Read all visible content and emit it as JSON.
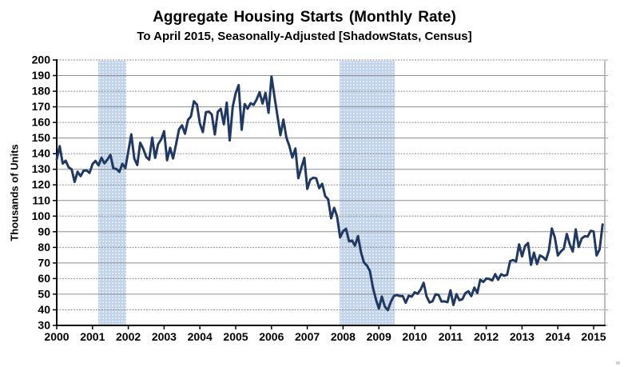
{
  "chart_data": {
    "type": "line",
    "title": "Aggregate Housing Starts (Monthly Rate)",
    "subtitle": "To April 2015, Seasonally-Adjusted [ShadowStats, Census]",
    "ylabel": "Thousands of Units",
    "xlabel": "",
    "ylim": [
      30,
      200
    ],
    "xlim": [
      2000,
      2015.3333
    ],
    "y_ticks": [
      200,
      190,
      180,
      170,
      160,
      150,
      140,
      130,
      120,
      110,
      100,
      90,
      80,
      70,
      60,
      50,
      40,
      30
    ],
    "x_ticks": [
      2000,
      2001,
      2002,
      2003,
      2004,
      2005,
      2006,
      2007,
      2008,
      2009,
      2010,
      2011,
      2012,
      2013,
      2014,
      2015
    ],
    "grid": "horizontal-only",
    "legend": "none",
    "x_start_year": 2000,
    "x_step_months": 1,
    "last_point_label": "April 2015",
    "series": [
      {
        "name": "Aggregate Housing Starts",
        "color": "#1f3864",
        "values": [
          136.3,
          144.8,
          133.7,
          135.5,
          131.3,
          129.9,
          121.9,
          128.4,
          125.6,
          129.1,
          129.3,
          127.7,
          133.3,
          135.4,
          132.5,
          137.4,
          133.8,
          136.3,
          139.2,
          130.6,
          130.2,
          128.3,
          133.5,
          130.7,
          141.5,
          152.4,
          136.8,
          132.7,
          147.0,
          143.1,
          137.9,
          136.1,
          150.3,
          137.3,
          146.1,
          149.0,
          154.4,
          135.8,
          143.8,
          136.9,
          145.9,
          155.6,
          158.1,
          152.8,
          161.6,
          163.9,
          173.6,
          171.4,
          159.3,
          153.8,
          166.5,
          166.9,
          165.1,
          152.3,
          166.8,
          168.7,
          158.8,
          172.7,
          148.5,
          170.2,
          178.7,
          183.9,
          155.3,
          171.8,
          168.8,
          172.3,
          171.2,
          174.6,
          179.3,
          172.1,
          178.9,
          166.2,
          189.4,
          176.6,
          164.1,
          151.8,
          161.8,
          150.2,
          144.8,
          137.5,
          143.3,
          124.3,
          130.8,
          137.4,
          117.4,
          123.3,
          124.6,
          124.2,
          117.9,
          120.7,
          112.8,
          110.8,
          98.6,
          105.3,
          99.8,
          86.4,
          90.3,
          91.9,
          83.8,
          84.4,
          81.1,
          87.2,
          76.9,
          70.3,
          68.3,
          64.8,
          54.3,
          46.7,
          40.8,
          48.5,
          42.1,
          39.8,
          45.0,
          48.8,
          49.5,
          48.8,
          48.8,
          44.5,
          49.0,
          48.4,
          51.2,
          50.3,
          53.0,
          57.3,
          48.6,
          44.7,
          45.5,
          49.9,
          49.5,
          45.3,
          45.4,
          44.9,
          52.5,
          43.1,
          50.0,
          46.2,
          46.8,
          50.7,
          51.9,
          48.8,
          54.2,
          50.8,
          59.3,
          57.8,
          60.0,
          59.8,
          58.8,
          62.8,
          59.3,
          62.8,
          61.8,
          62.4,
          71.2,
          71.9,
          70.9,
          81.9,
          74.2,
          80.8,
          82.8,
          68.8,
          76.6,
          69.3,
          74.8,
          73.8,
          71.9,
          78.0,
          92.1,
          86.2,
          74.8,
          77.3,
          79.2,
          88.6,
          82.0,
          77.3,
          91.5,
          80.3,
          85.7,
          87.1,
          86.9,
          90.6,
          90.1,
          74.8,
          78.7,
          94.6
        ]
      }
    ],
    "recession_bands": [
      {
        "start": 2001.17,
        "end": 2001.95
      },
      {
        "start": 2007.9,
        "end": 2009.45
      }
    ],
    "colors": {
      "line": "#1f3864",
      "band": "#c2d4ea",
      "axis": "#000000",
      "grid": "#8d8d8d",
      "right_border": "#a8a8a8",
      "text": "#000000"
    }
  }
}
